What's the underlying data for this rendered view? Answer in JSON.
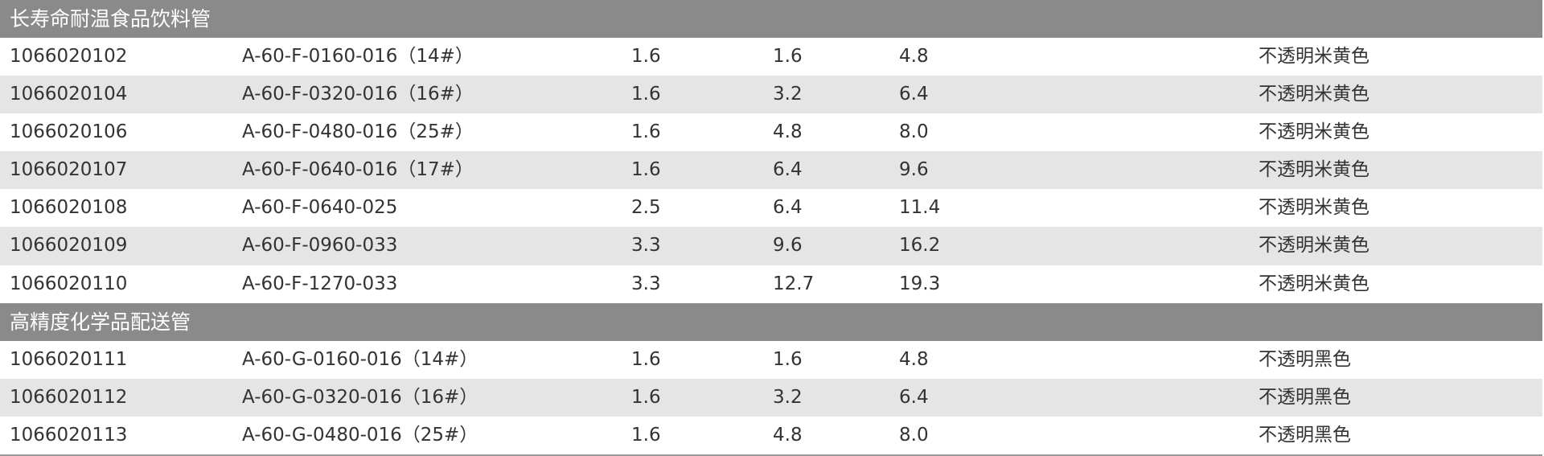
{
  "table": {
    "sections": [
      {
        "title": "长寿命耐温食品饮料管",
        "rows": [
          [
            "1066020102",
            "A-60-F-0160-016（14#）",
            "1.6",
            "1.6",
            "4.8",
            "不透明米黄色"
          ],
          [
            "1066020104",
            "A-60-F-0320-016（16#）",
            "1.6",
            "3.2",
            "6.4",
            "不透明米黄色"
          ],
          [
            "1066020106",
            "A-60-F-0480-016（25#）",
            "1.6",
            "4.8",
            "8.0",
            "不透明米黄色"
          ],
          [
            "1066020107",
            "A-60-F-0640-016（17#）",
            "1.6",
            "6.4",
            "9.6",
            "不透明米黄色"
          ],
          [
            "1066020108",
            "A-60-F-0640-025",
            "2.5",
            "6.4",
            "11.4",
            "不透明米黄色"
          ],
          [
            "1066020109",
            "A-60-F-0960-033",
            "3.3",
            "9.6",
            "16.2",
            "不透明米黄色"
          ],
          [
            "1066020110",
            "A-60-F-1270-033",
            "3.3",
            "12.7",
            "19.3",
            "不透明米黄色"
          ]
        ]
      },
      {
        "title": "高精度化学品配送管",
        "rows": [
          [
            "1066020111",
            "A-60-G-0160-016（14#）",
            "1.6",
            "1.6",
            "4.8",
            "不透明黑色"
          ],
          [
            "1066020112",
            "A-60-G-0320-016（16#）",
            "1.6",
            "3.2",
            "6.4",
            "不透明黑色"
          ],
          [
            "1066020113",
            "A-60-G-0480-016（25#）",
            "1.6",
            "4.8",
            "8.0",
            "不透明黑色"
          ]
        ]
      }
    ]
  }
}
